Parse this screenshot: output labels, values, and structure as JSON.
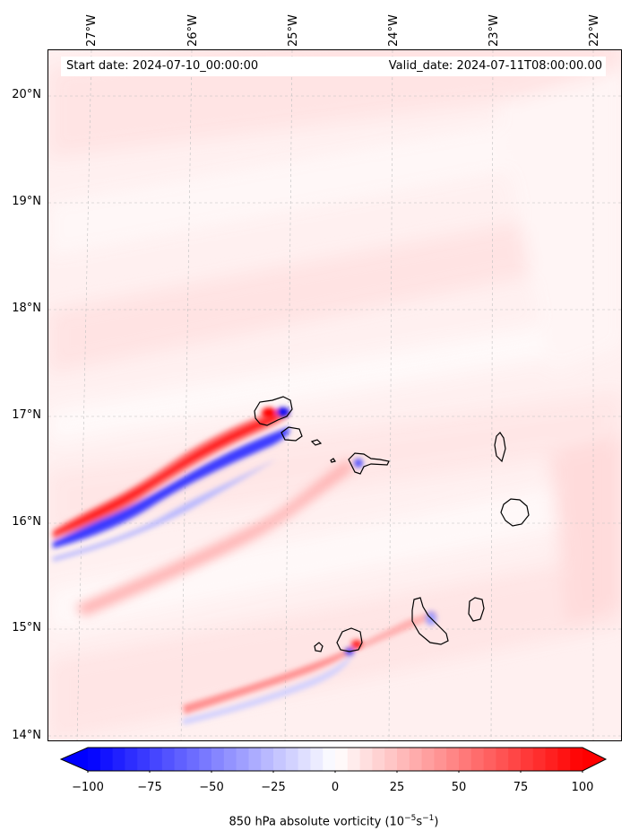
{
  "map": {
    "start_label": "Start date: 2024-07-10_00:00:00",
    "valid_label": "Valid_date: 2024-07-11T08:00:00.00",
    "lon_ticks": [
      "27°W",
      "26°W",
      "25°W",
      "24°W",
      "23°W",
      "22°W"
    ],
    "lat_ticks": [
      "20°N",
      "19°N",
      "18°N",
      "17°N",
      "16°N",
      "15°N",
      "14°N"
    ],
    "lon_range_deg": [
      -27.3,
      -21.7
    ],
    "lat_range_deg": [
      13.95,
      20.45
    ],
    "islands": [
      "Santo Antão",
      "São Vicente",
      "Santa Luzia",
      "São Nicolau",
      "Sal",
      "Boa Vista",
      "Maio",
      "Santiago",
      "Fogo",
      "Brava"
    ]
  },
  "colorbar": {
    "ticks": [
      "−100",
      "−75",
      "−50",
      "−25",
      "0",
      "25",
      "50",
      "75",
      "100"
    ],
    "tick_values": [
      -100,
      -75,
      -50,
      -25,
      0,
      25,
      50,
      75,
      100
    ],
    "range": [
      -100,
      100
    ],
    "extend": "both",
    "colormap": "bwr",
    "label_text": "850 hPa absolute vorticity (10",
    "label_exp1": "−5",
    "label_mid": "s",
    "label_exp2": "−1",
    "label_end": ")"
  },
  "colors": {
    "positive": "#ff0000",
    "negative": "#0000ff",
    "background": "#fff4f4"
  }
}
